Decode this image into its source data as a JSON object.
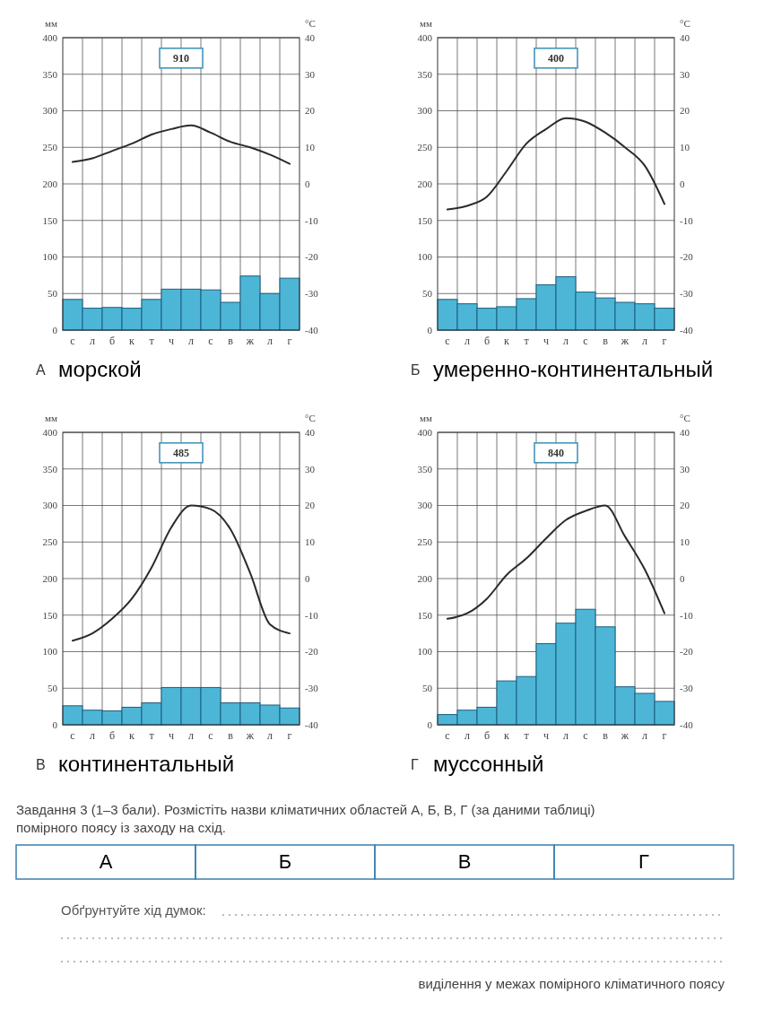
{
  "chart_data": [
    {
      "type": "bar",
      "title": "морской",
      "ylabel": "мм",
      "y2label": "°С",
      "annotations": [
        "А",
        "910"
      ],
      "categories": [
        "с",
        "л",
        "б",
        "к",
        "т",
        "ч",
        "л",
        "с",
        "в",
        "ж",
        "л",
        "г"
      ],
      "series": [
        {
          "type": "bar",
          "color": "#4db6d6",
          "values": [
            42,
            30,
            31,
            30,
            42,
            56,
            56,
            55,
            38,
            74,
            50,
            71
          ]
        },
        {
          "type": "line",
          "axis": "y2",
          "color": "#2a2a2a",
          "values": [
            6,
            7,
            9,
            11,
            13.5,
            15,
            16,
            14,
            11.5,
            10,
            8,
            5.5
          ]
        }
      ],
      "ylim": [
        0,
        400
      ],
      "yticks": [
        0,
        50,
        100,
        150,
        200,
        250,
        300,
        350,
        400
      ],
      "y2lim": [
        -40,
        40
      ],
      "y2ticks": [
        -40,
        -30,
        -20,
        -10,
        0,
        10,
        20,
        30,
        40
      ],
      "grid": true
    },
    {
      "type": "bar",
      "title": "умеренно-континентальный",
      "ylabel": "мм",
      "y2label": "°С",
      "annotations": [
        "Б",
        "400"
      ],
      "categories": [
        "с",
        "л",
        "б",
        "к",
        "т",
        "ч",
        "л",
        "с",
        "в",
        "ж",
        "л",
        "г"
      ],
      "series": [
        {
          "type": "bar",
          "color": "#4db6d6",
          "values": [
            42,
            36,
            30,
            32,
            43,
            62,
            73,
            52,
            44,
            38,
            36,
            30
          ]
        },
        {
          "type": "line",
          "axis": "y2",
          "color": "#2a2a2a",
          "values": [
            -7,
            -6,
            -3.5,
            3.5,
            11,
            15,
            18,
            17,
            14,
            10,
            5,
            -5.5
          ]
        }
      ],
      "ylim": [
        0,
        400
      ],
      "yticks": [
        0,
        50,
        100,
        150,
        200,
        250,
        300,
        350,
        400
      ],
      "y2lim": [
        -40,
        40
      ],
      "y2ticks": [
        -40,
        -30,
        -20,
        -10,
        0,
        10,
        20,
        30,
        40
      ],
      "grid": true
    },
    {
      "type": "bar",
      "title": "континентальный",
      "ylabel": "мм",
      "y2label": "°С",
      "annotations": [
        "В",
        "485"
      ],
      "categories": [
        "с",
        "л",
        "б",
        "к",
        "т",
        "ч",
        "л",
        "с",
        "в",
        "ж",
        "л",
        "г"
      ],
      "series": [
        {
          "type": "bar",
          "color": "#4db6d6",
          "values": [
            26,
            20,
            19,
            24,
            30,
            51,
            51,
            51,
            30,
            30,
            27,
            23
          ]
        },
        {
          "type": "line",
          "axis": "y2",
          "color": "#2a2a2a",
          "values": [
            -17,
            -15,
            -11,
            -5.5,
            3,
            14,
            20,
            19,
            13.5,
            1.5,
            -12.5,
            -15
          ]
        }
      ],
      "ylim": [
        0,
        400
      ],
      "yticks": [
        0,
        50,
        100,
        150,
        200,
        250,
        300,
        350,
        400
      ],
      "y2lim": [
        -40,
        40
      ],
      "y2ticks": [
        -40,
        -30,
        -20,
        -10,
        0,
        10,
        20,
        30,
        40
      ],
      "grid": true
    },
    {
      "type": "bar",
      "title": "муссонный",
      "ylabel": "мм",
      "y2label": "°С",
      "annotations": [
        "Г",
        "840"
      ],
      "categories": [
        "с",
        "л",
        "б",
        "к",
        "т",
        "ч",
        "л",
        "с",
        "в",
        "ж",
        "л",
        "г"
      ],
      "series": [
        {
          "type": "bar",
          "color": "#4db6d6",
          "values": [
            14,
            20,
            24,
            60,
            66,
            111,
            139,
            158,
            134,
            52,
            43,
            32
          ]
        },
        {
          "type": "line",
          "axis": "y2",
          "color": "#2a2a2a",
          "values": [
            -11,
            -9.5,
            -5.5,
            1,
            5.5,
            11,
            16,
            18.5,
            20,
            11.5,
            2.5,
            -9.5
          ]
        }
      ],
      "ylim": [
        0,
        400
      ],
      "yticks": [
        0,
        50,
        100,
        150,
        200,
        250,
        300,
        350,
        400
      ],
      "y2lim": [
        -40,
        40
      ],
      "y2ticks": [
        -40,
        -30,
        -20,
        -10,
        0,
        10,
        20,
        30,
        40
      ],
      "grid": true
    },
    {
      "type": "other",
      "title": "Завдання 3 (1–3 бали). Розмістіть назви кліматичних областей А, Б, В, Г (за даними таблиці) помірного поясу із заходу на схід.",
      "categories": [
        "А",
        "Б",
        "В",
        "Г"
      ],
      "annotations": [
        "Обґрунтуйте хід думок:",
        "виділення у межах помірного кліматичного поясу"
      ]
    }
  ]
}
